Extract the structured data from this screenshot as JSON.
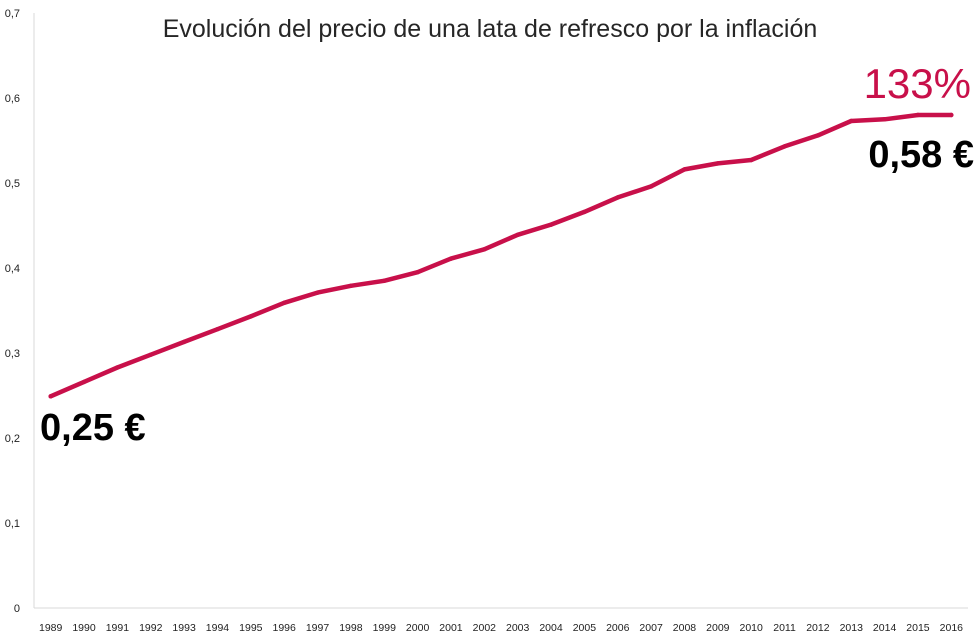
{
  "chart_data": {
    "type": "line",
    "title": "Evolución del precio de una lata de refresco por la inflación",
    "xlabel": "",
    "ylabel": "",
    "ylim": [
      0,
      0.7
    ],
    "y_ticks": [
      "0",
      "0,1",
      "0,2",
      "0,3",
      "0,4",
      "0,5",
      "0,6",
      "0,7"
    ],
    "grid": false,
    "categories": [
      "1989",
      "1990",
      "1991",
      "1992",
      "1993",
      "1994",
      "1995",
      "1996",
      "1997",
      "1998",
      "1999",
      "2000",
      "2001",
      "2002",
      "2003",
      "2004",
      "2005",
      "2006",
      "2007",
      "2008",
      "2009",
      "2010",
      "2011",
      "2012",
      "2013",
      "2014",
      "2015",
      "2016"
    ],
    "series": [
      {
        "color": "#c8104a",
        "values": [
          0.249,
          0.266,
          0.283,
          0.298,
          0.313,
          0.328,
          0.343,
          0.359,
          0.371,
          0.379,
          0.385,
          0.395,
          0.411,
          0.422,
          0.439,
          0.451,
          0.466,
          0.483,
          0.496,
          0.516,
          0.523,
          0.527,
          0.543,
          0.556,
          0.573,
          0.575,
          0.58,
          0.58
        ]
      }
    ],
    "annotations": {
      "start_price": "0,25 €",
      "end_price": "0,58 €",
      "increase": "133%"
    }
  }
}
